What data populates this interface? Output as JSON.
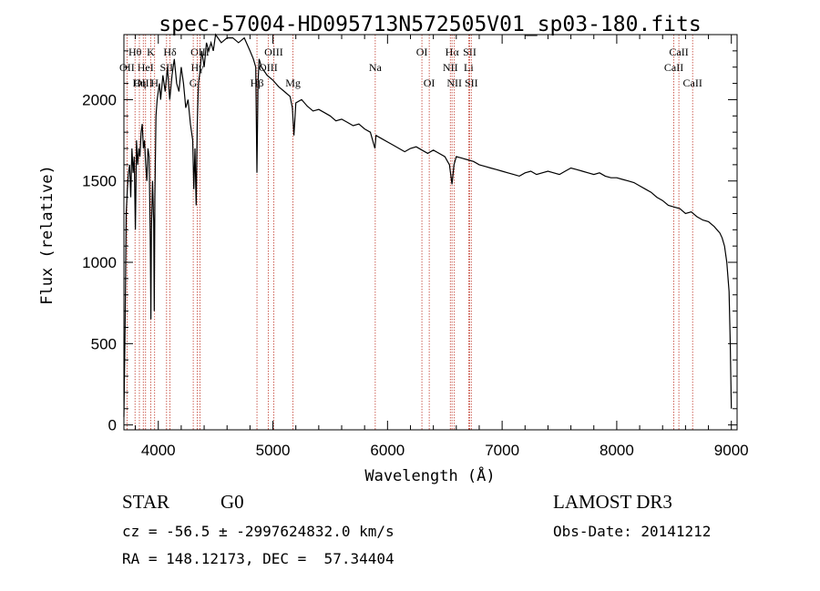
{
  "chart_data": {
    "type": "line",
    "title": "spec-57004-HD095713N572505V01_sp03-180.fits",
    "xlabel": "Wavelength (Å)",
    "ylabel": "Flux (relative)",
    "xlim": [
      3700,
      9050
    ],
    "ylim": [
      -30,
      2400
    ],
    "xticks": [
      4000,
      5000,
      6000,
      7000,
      8000,
      9000
    ],
    "yticks": [
      0,
      500,
      1000,
      1500,
      2000
    ],
    "grid": false,
    "series": [
      {
        "color": "#000000",
        "x": [
          3700,
          3710,
          3720,
          3730,
          3740,
          3750,
          3760,
          3770,
          3780,
          3790,
          3800,
          3810,
          3820,
          3830,
          3840,
          3850,
          3860,
          3870,
          3880,
          3890,
          3900,
          3910,
          3920,
          3930,
          3935,
          3940,
          3950,
          3960,
          3965,
          3970,
          3980,
          3990,
          4000,
          4010,
          4020,
          4040,
          4060,
          4080,
          4100,
          4120,
          4140,
          4160,
          4180,
          4200,
          4220,
          4240,
          4260,
          4280,
          4300,
          4310,
          4320,
          4330,
          4340,
          4350,
          4360,
          4380,
          4400,
          4420,
          4440,
          4460,
          4480,
          4500,
          4550,
          4600,
          4650,
          4700,
          4750,
          4800,
          4830,
          4850,
          4861,
          4870,
          4880,
          4900,
          4950,
          5000,
          5050,
          5100,
          5150,
          5170,
          5183,
          5200,
          5250,
          5300,
          5350,
          5400,
          5450,
          5500,
          5550,
          5600,
          5650,
          5700,
          5750,
          5800,
          5850,
          5890,
          5900,
          5950,
          6000,
          6050,
          6100,
          6150,
          6200,
          6250,
          6300,
          6350,
          6400,
          6450,
          6500,
          6540,
          6563,
          6580,
          6600,
          6650,
          6700,
          6750,
          6800,
          6850,
          6900,
          6950,
          7000,
          7050,
          7100,
          7150,
          7200,
          7250,
          7300,
          7350,
          7400,
          7450,
          7500,
          7550,
          7600,
          7650,
          7700,
          7750,
          7800,
          7850,
          7900,
          7950,
          8000,
          8050,
          8100,
          8150,
          8200,
          8250,
          8300,
          8350,
          8400,
          8450,
          8500,
          8550,
          8600,
          8650,
          8700,
          8750,
          8800,
          8850,
          8900,
          8920,
          8940,
          8960,
          8980,
          8990,
          9000
        ],
        "y": [
          50,
          600,
          1300,
          1450,
          1550,
          1600,
          1400,
          1700,
          1550,
          1650,
          1200,
          1750,
          1600,
          1700,
          1650,
          1800,
          1850,
          1700,
          1750,
          1600,
          1500,
          1700,
          1650,
          1150,
          650,
          1200,
          1500,
          1250,
          700,
          1400,
          1900,
          2000,
          2050,
          2100,
          2000,
          2150,
          2050,
          2200,
          2000,
          2150,
          2250,
          2100,
          2050,
          2200,
          2100,
          1950,
          2000,
          1850,
          1750,
          1450,
          1700,
          1350,
          1850,
          2100,
          2150,
          2300,
          2200,
          2350,
          2300,
          2350,
          2300,
          2400,
          2350,
          2380,
          2380,
          2350,
          2380,
          2300,
          2250,
          2200,
          1550,
          2100,
          2250,
          2200,
          2150,
          2120,
          2080,
          2050,
          2020,
          1950,
          1780,
          1980,
          2000,
          1960,
          1930,
          1940,
          1920,
          1900,
          1870,
          1880,
          1860,
          1840,
          1850,
          1820,
          1800,
          1700,
          1780,
          1760,
          1740,
          1720,
          1700,
          1680,
          1700,
          1710,
          1690,
          1670,
          1690,
          1670,
          1650,
          1600,
          1480,
          1600,
          1650,
          1640,
          1630,
          1620,
          1600,
          1590,
          1580,
          1570,
          1560,
          1550,
          1540,
          1530,
          1550,
          1560,
          1540,
          1550,
          1560,
          1550,
          1540,
          1560,
          1580,
          1570,
          1560,
          1550,
          1540,
          1550,
          1530,
          1520,
          1520,
          1510,
          1500,
          1490,
          1470,
          1450,
          1430,
          1400,
          1380,
          1350,
          1340,
          1330,
          1300,
          1310,
          1280,
          1260,
          1250,
          1220,
          1180,
          1150,
          1100,
          1000,
          820,
          500,
          100
        ]
      }
    ],
    "line_markers": [
      {
        "label": "Hθ",
        "wave": 3797,
        "row": 1
      },
      {
        "label": "OII",
        "wave": 3727,
        "row": 2
      },
      {
        "label": "OIII",
        "wave": 3869,
        "row": 3
      },
      {
        "label": "HeI",
        "wave": 3889,
        "row": 2
      },
      {
        "label": "Hη",
        "wave": 3835,
        "row": 3
      },
      {
        "label": "K",
        "wave": 3934,
        "row": 1
      },
      {
        "label": "SII",
        "wave": 4072,
        "row": 2
      },
      {
        "label": "H",
        "wave": 3968,
        "row": 3
      },
      {
        "label": "Hδ",
        "wave": 4102,
        "row": 1
      },
      {
        "label": "OIII",
        "wave": 4363,
        "row": 1
      },
      {
        "label": "Hγ",
        "wave": 4340,
        "row": 2
      },
      {
        "label": "G",
        "wave": 4305,
        "row": 3
      },
      {
        "label": "Hβ",
        "wave": 4861,
        "row": 3
      },
      {
        "label": "OIII",
        "wave": 5007,
        "row": 1
      },
      {
        "label": "OIII",
        "wave": 4959,
        "row": 2
      },
      {
        "label": "Mg",
        "wave": 5175,
        "row": 3
      },
      {
        "label": "Na",
        "wave": 5893,
        "row": 2
      },
      {
        "label": "OI",
        "wave": 6300,
        "row": 1
      },
      {
        "label": "OI",
        "wave": 6364,
        "row": 3
      },
      {
        "label": "Hα",
        "wave": 6563,
        "row": 1
      },
      {
        "label": "NII",
        "wave": 6548,
        "row": 2
      },
      {
        "label": "NII",
        "wave": 6583,
        "row": 3
      },
      {
        "label": "SII",
        "wave": 6717,
        "row": 1
      },
      {
        "label": "Li",
        "wave": 6708,
        "row": 2
      },
      {
        "label": "SII",
        "wave": 6731,
        "row": 3
      },
      {
        "label": "CaII",
        "wave": 8542,
        "row": 1
      },
      {
        "label": "CaII",
        "wave": 8498,
        "row": 2
      },
      {
        "label": "CaII",
        "wave": 8662,
        "row": 3
      }
    ]
  },
  "info": {
    "class": "STAR",
    "subclass": "G0",
    "survey": "LAMOST DR3",
    "cz": "cz = -56.5 ± -2997624832.0 km/s",
    "radec": "RA = 148.12173, DEC =  57.34404",
    "obsdate": "Obs-Date: 20141212"
  }
}
